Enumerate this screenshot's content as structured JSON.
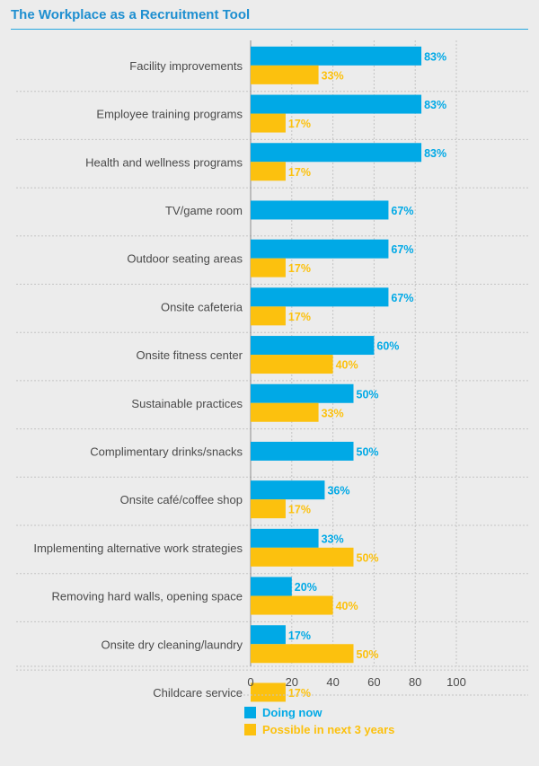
{
  "chart_data": {
    "type": "bar",
    "orientation": "horizontal",
    "title": "The Workplace as a Recruitment Tool",
    "categories": [
      "Facility improvements",
      "Employee training programs",
      "Health and wellness programs",
      "TV/game room",
      "Outdoor seating areas",
      "Onsite cafeteria",
      "Onsite fitness center",
      "Sustainable practices",
      "Complimentary drinks/snacks",
      "Onsite café/coffee shop",
      "Implementing alternative work strategies",
      "Removing hard walls, opening space",
      "Onsite dry cleaning/laundry",
      "Childcare service"
    ],
    "series": [
      {
        "name": "Doing now",
        "color": "#00a9e6",
        "values": [
          83,
          83,
          83,
          67,
          67,
          67,
          60,
          50,
          50,
          36,
          33,
          20,
          17,
          null
        ]
      },
      {
        "name": "Possible in next 3 years",
        "color": "#fcc10e",
        "values": [
          33,
          17,
          17,
          null,
          17,
          17,
          40,
          33,
          null,
          17,
          50,
          40,
          50,
          17
        ]
      }
    ],
    "value_suffix": "%",
    "xlim": [
      0,
      100
    ],
    "xticks": [
      0,
      20,
      40,
      60,
      80,
      100
    ],
    "grid": true,
    "legend_position": "bottom"
  }
}
